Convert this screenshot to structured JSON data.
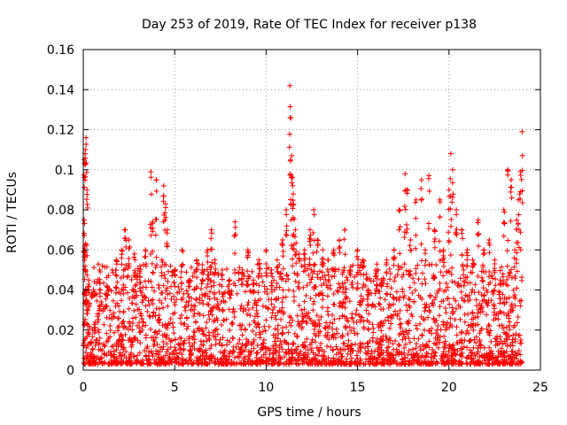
{
  "chart_data": {
    "type": "scatter",
    "title": "Day 253 of 2019, Rate Of TEC Index for receiver p138",
    "xlabel": "GPS time / hours",
    "ylabel": "ROTI / TECUs",
    "xlim": [
      0,
      25
    ],
    "ylim": [
      0,
      0.16
    ],
    "x_ticks": [
      "0",
      "5",
      "10",
      "15",
      "20",
      "25"
    ],
    "y_ticks": [
      "0",
      "0.02",
      "0.04",
      "0.06",
      "0.08",
      "0.1",
      "0.12",
      "0.14",
      "0.16"
    ],
    "grid": true,
    "marker": "+",
    "color": "#ff0000",
    "series": [
      {
        "x": [
          0.05,
          0.1,
          0.15,
          0.2,
          0.05,
          0.1,
          0.12,
          0.18,
          0.22,
          0.08,
          0.3,
          0.5,
          0.9,
          1.3,
          1.8,
          2.1,
          2.3,
          2.5,
          2.8,
          3.1,
          3.4,
          3.7,
          3.8,
          4.0,
          4.3,
          4.4,
          4.5,
          4.6,
          5.0,
          5.4,
          5.8,
          6.2,
          6.5,
          6.8,
          7.0,
          7.2,
          7.6,
          8.0,
          8.3,
          8.7,
          9.0,
          9.3,
          9.6,
          10.0,
          10.3,
          10.6,
          10.9,
          11.1,
          11.3,
          11.35,
          11.4,
          11.45,
          11.5,
          11.6,
          11.8,
          12.1,
          12.4,
          12.6,
          12.8,
          13.1,
          13.4,
          13.7,
          14.0,
          14.3,
          14.6,
          15.0,
          15.3,
          15.6,
          16.0,
          16.3,
          16.6,
          17.0,
          17.3,
          17.6,
          17.7,
          17.9,
          18.2,
          18.5,
          18.7,
          18.9,
          19.2,
          19.5,
          19.7,
          20.0,
          20.1,
          20.2,
          20.4,
          20.7,
          21.0,
          21.3,
          21.6,
          21.9,
          22.2,
          22.5,
          22.8,
          23.0,
          23.2,
          23.4,
          23.6,
          23.7,
          23.8,
          23.9,
          24.0
        ],
        "y": [
          0.105,
          0.108,
          0.116,
          0.09,
          0.075,
          0.052,
          0.04,
          0.035,
          0.03,
          0.062,
          0.045,
          0.038,
          0.05,
          0.042,
          0.055,
          0.06,
          0.07,
          0.065,
          0.058,
          0.052,
          0.06,
          0.099,
          0.074,
          0.095,
          0.055,
          0.092,
          0.083,
          0.07,
          0.05,
          0.06,
          0.045,
          0.055,
          0.05,
          0.06,
          0.07,
          0.055,
          0.05,
          0.045,
          0.074,
          0.05,
          0.06,
          0.045,
          0.055,
          0.06,
          0.05,
          0.055,
          0.065,
          0.08,
          0.142,
          0.126,
          0.107,
          0.092,
          0.083,
          0.07,
          0.058,
          0.06,
          0.07,
          0.08,
          0.065,
          0.06,
          0.055,
          0.06,
          0.065,
          0.07,
          0.05,
          0.06,
          0.055,
          0.04,
          0.05,
          0.045,
          0.055,
          0.06,
          0.08,
          0.098,
          0.09,
          0.065,
          0.085,
          0.095,
          0.06,
          0.097,
          0.07,
          0.085,
          0.06,
          0.09,
          0.108,
          0.1,
          0.08,
          0.07,
          0.06,
          0.055,
          0.075,
          0.06,
          0.065,
          0.055,
          0.045,
          0.08,
          0.1,
          0.095,
          0.06,
          0.075,
          0.085,
          0.099,
          0.119
        ]
      }
    ]
  }
}
